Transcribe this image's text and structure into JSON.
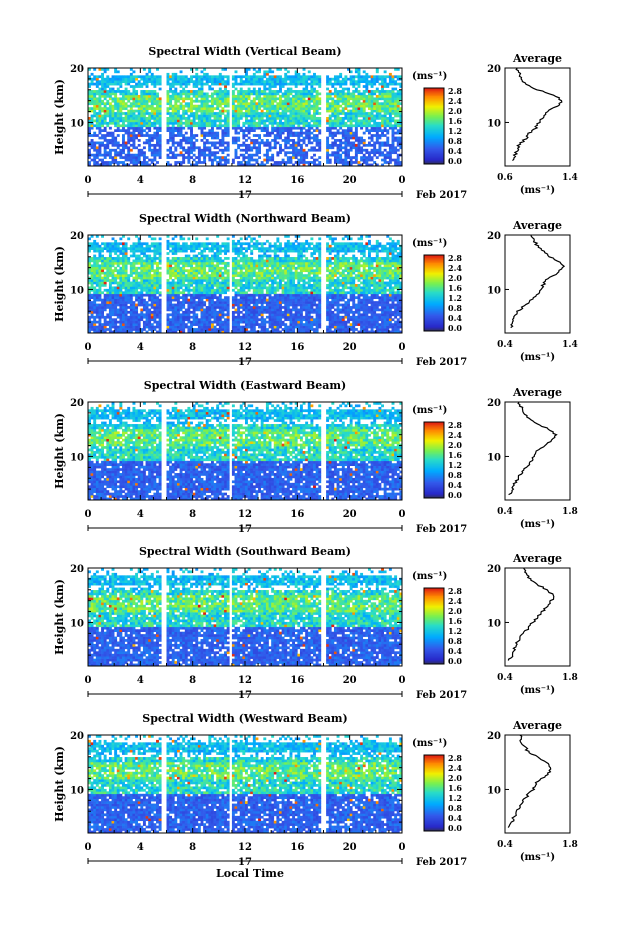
{
  "footer": {
    "xlabel": "Local Time"
  },
  "chart_data": [
    {
      "type": "heatmap",
      "title": "Spectral Width (Vertical Beam)",
      "ylabel": "Height (km)",
      "xlim": [
        0,
        24
      ],
      "ylim": [
        2,
        20
      ],
      "x_ticks": [
        "0",
        "4",
        "8",
        "12",
        "16",
        "20",
        "0"
      ],
      "y_ticks": [
        "10",
        "20"
      ],
      "date_day": "17",
      "date_label": "Feb 2017",
      "colorbar": {
        "unit": "(ms⁻¹)",
        "ticks": [
          "0.0",
          "0.4",
          "0.8",
          "1.2",
          "1.6",
          "2.0",
          "2.4",
          "2.8"
        ]
      },
      "gaps_hours": [
        5.8,
        10.9,
        18.0
      ],
      "profile": {
        "title": "Average",
        "unit": "(ms⁻¹)",
        "xticks": [
          "0.6",
          "1.4"
        ],
        "xlim": [
          0.6,
          1.4
        ],
        "yticks": [
          "10",
          "20"
        ],
        "heights": [
          3,
          4,
          5,
          6,
          7,
          8,
          9,
          10,
          11,
          12,
          13,
          14,
          15,
          16,
          17,
          18,
          19,
          20
        ],
        "values": [
          0.7,
          0.72,
          0.75,
          0.78,
          0.85,
          0.9,
          0.98,
          1.02,
          1.08,
          1.12,
          1.25,
          1.3,
          1.2,
          1.0,
          0.85,
          0.8,
          0.78,
          0.75
        ]
      }
    },
    {
      "type": "heatmap",
      "title": "Spectral Width (Northward Beam)",
      "ylabel": "Height (km)",
      "xlim": [
        0,
        24
      ],
      "ylim": [
        2,
        20
      ],
      "x_ticks": [
        "0",
        "4",
        "8",
        "12",
        "16",
        "20",
        "0"
      ],
      "y_ticks": [
        "10",
        "20"
      ],
      "date_day": "17",
      "date_label": "Feb 2017",
      "colorbar": {
        "unit": "(ms⁻¹)",
        "ticks": [
          "0.0",
          "0.4",
          "0.8",
          "1.2",
          "1.6",
          "2.0",
          "2.4",
          "2.8"
        ]
      },
      "gaps_hours": [
        5.8,
        10.9,
        18.0
      ],
      "profile": {
        "title": "Average",
        "unit": "(ms⁻¹)",
        "xticks": [
          "0.4",
          "1.4"
        ],
        "xlim": [
          0.4,
          1.4
        ],
        "yticks": [
          "10",
          "20"
        ],
        "heights": [
          3,
          4,
          5,
          6,
          7,
          8,
          9,
          10,
          11,
          12,
          13,
          14,
          15,
          16,
          17,
          18,
          19,
          20
        ],
        "values": [
          0.5,
          0.52,
          0.55,
          0.6,
          0.7,
          0.8,
          0.9,
          0.95,
          1.0,
          1.05,
          1.2,
          1.3,
          1.25,
          1.1,
          1.0,
          0.9,
          0.85,
          0.8
        ]
      }
    },
    {
      "type": "heatmap",
      "title": "Spectral Width (Eastward Beam)",
      "ylabel": "Height (km)",
      "xlim": [
        0,
        24
      ],
      "ylim": [
        2,
        20
      ],
      "x_ticks": [
        "0",
        "4",
        "8",
        "12",
        "16",
        "20",
        "0"
      ],
      "y_ticks": [
        "10",
        "20"
      ],
      "date_day": "17",
      "date_label": "Feb 2017",
      "colorbar": {
        "unit": "(ms⁻¹)",
        "ticks": [
          "0.0",
          "0.4",
          "0.8",
          "1.2",
          "1.6",
          "2.0",
          "2.4",
          "2.8"
        ]
      },
      "gaps_hours": [
        5.8,
        10.9,
        18.0
      ],
      "profile": {
        "title": "Average",
        "unit": "(ms⁻¹)",
        "xticks": [
          "0.4",
          "1.8"
        ],
        "xlim": [
          0.4,
          1.8
        ],
        "yticks": [
          "10",
          "20"
        ],
        "heights": [
          3,
          4,
          5,
          6,
          7,
          8,
          9,
          10,
          11,
          12,
          13,
          14,
          15,
          16,
          17,
          18,
          19,
          20
        ],
        "values": [
          0.5,
          0.55,
          0.6,
          0.7,
          0.75,
          0.85,
          0.95,
          1.0,
          1.1,
          1.25,
          1.4,
          1.5,
          1.35,
          1.1,
          0.9,
          0.8,
          0.75,
          0.7
        ]
      }
    },
    {
      "type": "heatmap",
      "title": "Spectral Width (Southward Beam)",
      "ylabel": "Height (km)",
      "xlim": [
        0,
        24
      ],
      "ylim": [
        2,
        20
      ],
      "x_ticks": [
        "0",
        "4",
        "8",
        "12",
        "16",
        "20",
        "0"
      ],
      "y_ticks": [
        "10",
        "20"
      ],
      "date_day": "17",
      "date_label": "Feb 2017",
      "colorbar": {
        "unit": "(ms⁻¹)",
        "ticks": [
          "0.0",
          "0.4",
          "0.8",
          "1.2",
          "1.6",
          "2.0",
          "2.4",
          "2.8"
        ]
      },
      "gaps_hours": [
        5.8,
        10.9,
        18.0
      ],
      "profile": {
        "title": "Average",
        "unit": "(ms⁻¹)",
        "xticks": [
          "0.4",
          "1.8"
        ],
        "xlim": [
          0.4,
          1.8
        ],
        "yticks": [
          "10",
          "20"
        ],
        "heights": [
          3,
          4,
          5,
          6,
          7,
          8,
          9,
          10,
          11,
          12,
          13,
          14,
          15,
          16,
          17,
          18,
          19,
          20
        ],
        "values": [
          0.5,
          0.55,
          0.6,
          0.65,
          0.7,
          0.8,
          0.9,
          1.0,
          1.1,
          1.2,
          1.3,
          1.4,
          1.45,
          1.3,
          1.1,
          0.95,
          0.85,
          0.8
        ]
      }
    },
    {
      "type": "heatmap",
      "title": "Spectral Width (Westward Beam)",
      "ylabel": "Height (km)",
      "xlim": [
        0,
        24
      ],
      "ylim": [
        2,
        20
      ],
      "x_ticks": [
        "0",
        "4",
        "8",
        "12",
        "16",
        "20",
        "0"
      ],
      "y_ticks": [
        "10",
        "20"
      ],
      "date_day": "17",
      "date_label": "Feb 2017",
      "colorbar": {
        "unit": "(ms⁻¹)",
        "ticks": [
          "0.0",
          "0.4",
          "0.8",
          "1.2",
          "1.6",
          "2.0",
          "2.4",
          "2.8"
        ]
      },
      "gaps_hours": [
        5.8,
        10.9,
        18.0
      ],
      "profile": {
        "title": "Average",
        "unit": "(ms⁻¹)",
        "xticks": [
          "0.4",
          "1.8"
        ],
        "xlim": [
          0.4,
          1.8
        ],
        "yticks": [
          "10",
          "20"
        ],
        "heights": [
          3,
          4,
          5,
          6,
          7,
          8,
          9,
          10,
          11,
          12,
          13,
          14,
          15,
          16,
          17,
          18,
          19,
          20
        ],
        "values": [
          0.5,
          0.55,
          0.6,
          0.65,
          0.75,
          0.8,
          0.9,
          1.0,
          1.05,
          1.2,
          1.35,
          1.4,
          1.3,
          1.1,
          0.9,
          0.8,
          0.75,
          0.72
        ]
      }
    }
  ]
}
